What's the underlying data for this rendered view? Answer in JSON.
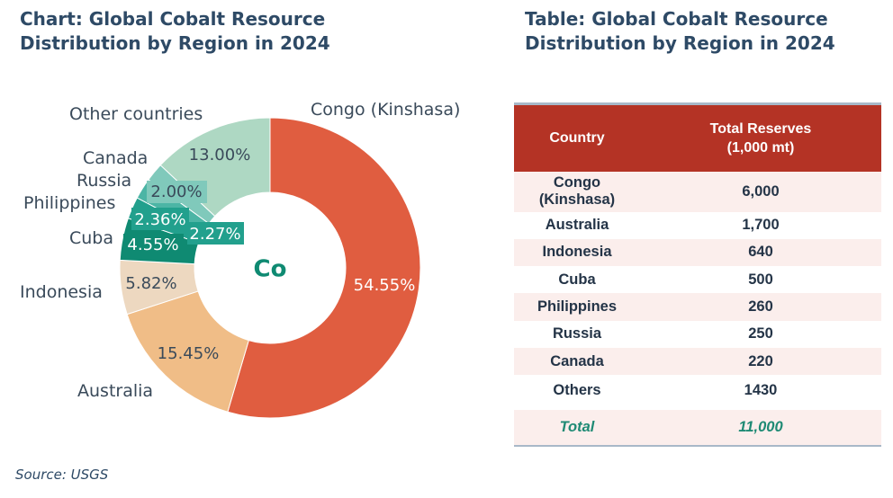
{
  "chart_title": {
    "line1": "Chart: Global Cobalt Resource",
    "line2": "Distribution by Region in 2024"
  },
  "table_title": {
    "line1": "Table: Global Cobalt Resource",
    "line2": "Distribution by Region in 2024"
  },
  "source": "Source: USGS",
  "chart_data": {
    "type": "pie",
    "title": "Chart: Global Cobalt Resource Distribution by Region in 2024",
    "center_label": "Co",
    "slices": [
      {
        "name": "Congo (Kinshasa)",
        "value": 54.55,
        "label": "54.55%",
        "color": "#e05d40"
      },
      {
        "name": "Australia",
        "value": 15.45,
        "label": "15.45%",
        "color": "#f0bd87"
      },
      {
        "name": "Indonesia",
        "value": 5.82,
        "label": "5.82%",
        "color": "#edd8c0"
      },
      {
        "name": "Cuba",
        "value": 4.55,
        "label": "4.55%",
        "color": "#0f8a72"
      },
      {
        "name": "Philippines",
        "value": 2.36,
        "label": "2.36%",
        "color": "#22a08d"
      },
      {
        "name": "Russia",
        "value": 2.27,
        "label": "2.27%",
        "color": "#4cb5a5"
      },
      {
        "name": "Canada",
        "value": 2.0,
        "label": "2.00%",
        "color": "#80c9bb"
      },
      {
        "name": "Other countries",
        "value": 13.0,
        "label": "13.00%",
        "color": "#aed8c3"
      }
    ]
  },
  "table": {
    "headers": {
      "country": "Country",
      "reserves_line1": "Total Reserves",
      "reserves_line2": "(1,000 mt)"
    },
    "rows": [
      {
        "country_line1": "Congo",
        "country_line2": "(Kinshasa)",
        "reserves": "6,000"
      },
      {
        "country": "Australia",
        "reserves": "1,700"
      },
      {
        "country": "Indonesia",
        "reserves": "640"
      },
      {
        "country": "Cuba",
        "reserves": "500"
      },
      {
        "country": "Philippines",
        "reserves": "260"
      },
      {
        "country": "Russia",
        "reserves": "250"
      },
      {
        "country": "Canada",
        "reserves": "220"
      },
      {
        "country": "Others",
        "reserves": "1430"
      }
    ],
    "total": {
      "label": "Total",
      "value": "11,000"
    }
  },
  "colors": {
    "title": "#2e4a66",
    "header_bg": "#b43325",
    "row_alt_bg": "#fbeeec",
    "total_text": "#1e8a74",
    "center_text": "#0f8a72"
  }
}
